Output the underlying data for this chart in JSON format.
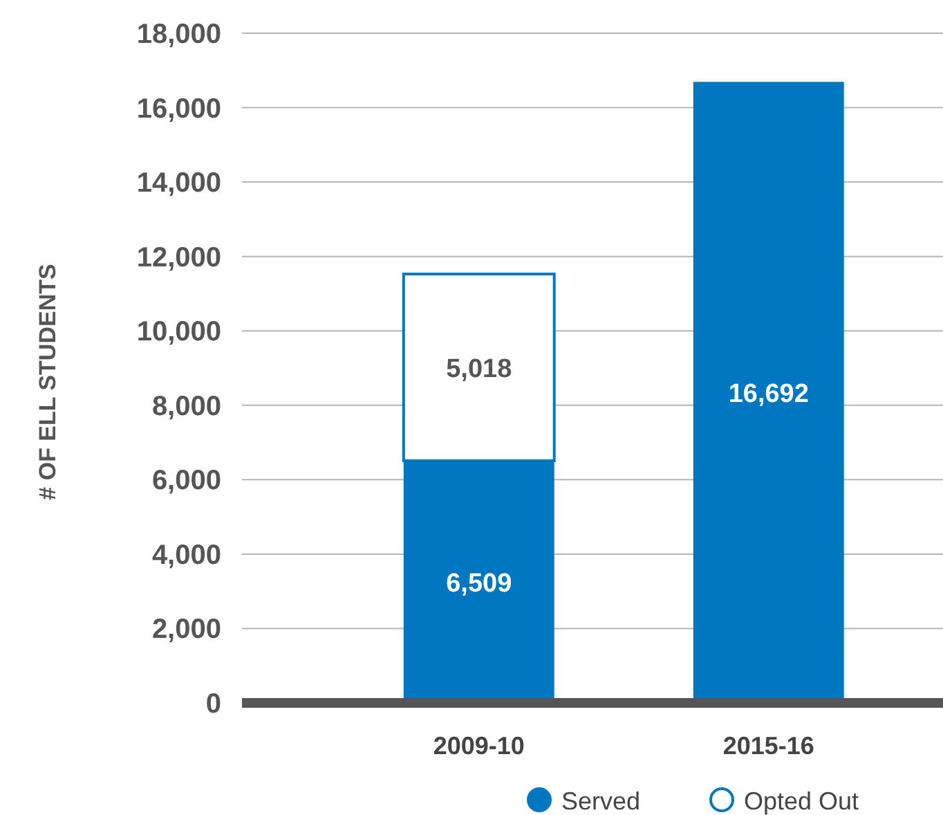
{
  "chart_data": {
    "type": "bar",
    "ylabel": "# OF ELL STUDENTS",
    "categories": [
      "2009-10",
      "2015-16"
    ],
    "stacked": true,
    "ylim": [
      0,
      18000
    ],
    "yticks": [
      {
        "value": 0,
        "label": "0"
      },
      {
        "value": 2000,
        "label": "2,000"
      },
      {
        "value": 4000,
        "label": "4,000"
      },
      {
        "value": 6000,
        "label": "6,000"
      },
      {
        "value": 8000,
        "label": "8,000"
      },
      {
        "value": 10000,
        "label": "10,000"
      },
      {
        "value": 12000,
        "label": "12,000"
      },
      {
        "value": 14000,
        "label": "14,000"
      },
      {
        "value": 16000,
        "label": "16,000"
      },
      {
        "value": 18000,
        "label": "18,000"
      }
    ],
    "series": [
      {
        "name": "Served",
        "color": "#0077c0",
        "values": [
          6509,
          16692
        ],
        "value_labels": [
          "6,509",
          "16,692"
        ]
      },
      {
        "name": "Opted Out",
        "color": "#ffffff",
        "values": [
          5018,
          null
        ],
        "value_labels": [
          "5,018",
          null
        ]
      }
    ],
    "grid": "y",
    "legend": "bottom right"
  }
}
